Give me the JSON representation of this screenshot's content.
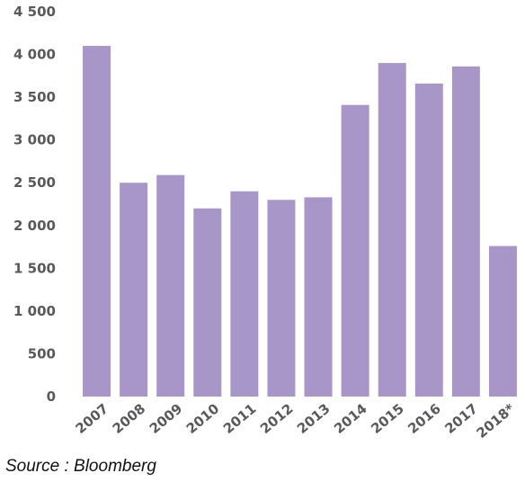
{
  "chart_data": {
    "type": "bar",
    "categories": [
      "2007",
      "2008",
      "2009",
      "2010",
      "2011",
      "2012",
      "2013",
      "2014",
      "2015",
      "2016",
      "2017",
      "2018*"
    ],
    "values": [
      4100,
      2500,
      2590,
      2200,
      2400,
      2300,
      2330,
      3410,
      3900,
      3660,
      3860,
      1760
    ],
    "ylim": [
      0,
      4500
    ],
    "yticks": [
      0,
      500,
      1000,
      1500,
      2000,
      2500,
      3000,
      3500,
      4000,
      4500
    ],
    "ytick_labels": [
      "0",
      "500",
      "1 000",
      "1 500",
      "2 000",
      "2 500",
      "3 000",
      "3 500",
      "4 000",
      "4 500"
    ],
    "grid": false,
    "bar_color": "#a996c8"
  },
  "source": "Source : Bloomberg"
}
